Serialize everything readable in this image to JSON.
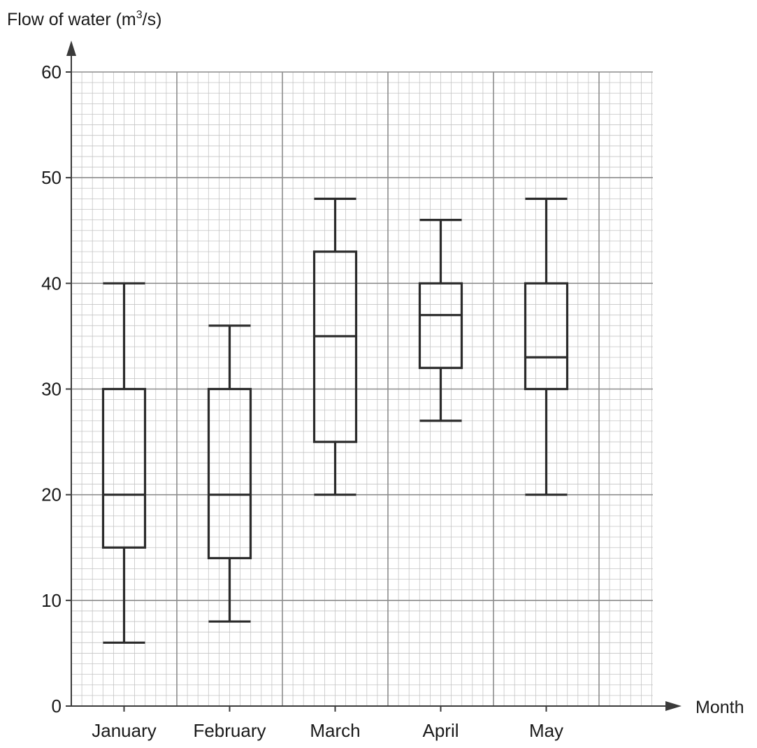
{
  "chart_data": {
    "type": "boxplot",
    "title": "",
    "ylabel_prefix": "Flow of water (m",
    "ylabel_sup": "3",
    "ylabel_suffix": "/s)",
    "xlabel": "Month",
    "ylim": [
      0,
      60
    ],
    "yticks": [
      0,
      10,
      20,
      30,
      40,
      50,
      60
    ],
    "grid": true,
    "categories": [
      "January",
      "February",
      "March",
      "April",
      "May"
    ],
    "boxes": [
      {
        "category": "January",
        "min": 6,
        "q1": 15,
        "median": 20,
        "q3": 30,
        "max": 40
      },
      {
        "category": "February",
        "min": 8,
        "q1": 14,
        "median": 20,
        "q3": 30,
        "max": 36
      },
      {
        "category": "March",
        "min": 20,
        "q1": 25,
        "median": 35,
        "q3": 43,
        "max": 48
      },
      {
        "category": "April",
        "min": 27,
        "q1": 32,
        "median": 37,
        "q3": 40,
        "max": 46
      },
      {
        "category": "May",
        "min": 20,
        "q1": 30,
        "median": 33,
        "q3": 40,
        "max": 48
      }
    ]
  }
}
